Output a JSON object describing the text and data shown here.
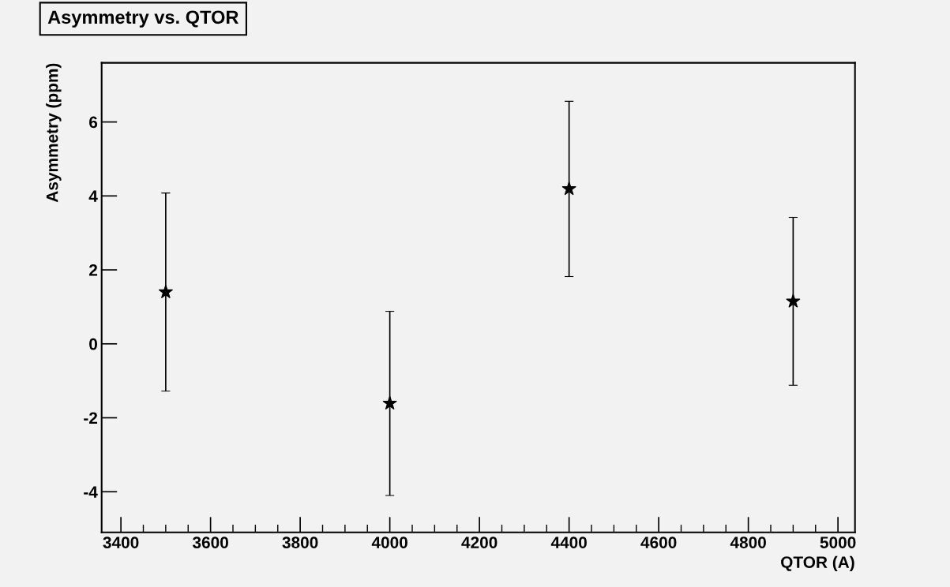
{
  "chart_data": {
    "type": "scatter",
    "title": "Asymmetry vs. QTOR",
    "xlabel": "QTOR (A)",
    "ylabel": "Asymmetry (ppm)",
    "x": [
      3500,
      4000,
      4400,
      4900
    ],
    "values": [
      1.4,
      -1.61,
      4.19,
      1.15
    ],
    "errors": [
      2.68,
      2.49,
      2.37,
      2.27
    ],
    "color": "#000000",
    "marker": "star",
    "grid": false,
    "legend": false,
    "xlim": [
      3357,
      5038
    ],
    "xticks": [
      3400,
      3600,
      3800,
      4000,
      4200,
      4400,
      4600,
      4800,
      5000
    ],
    "ylim": [
      -5.1,
      7.6
    ],
    "yticks": [
      -4,
      -2,
      0,
      2,
      4,
      6
    ]
  }
}
